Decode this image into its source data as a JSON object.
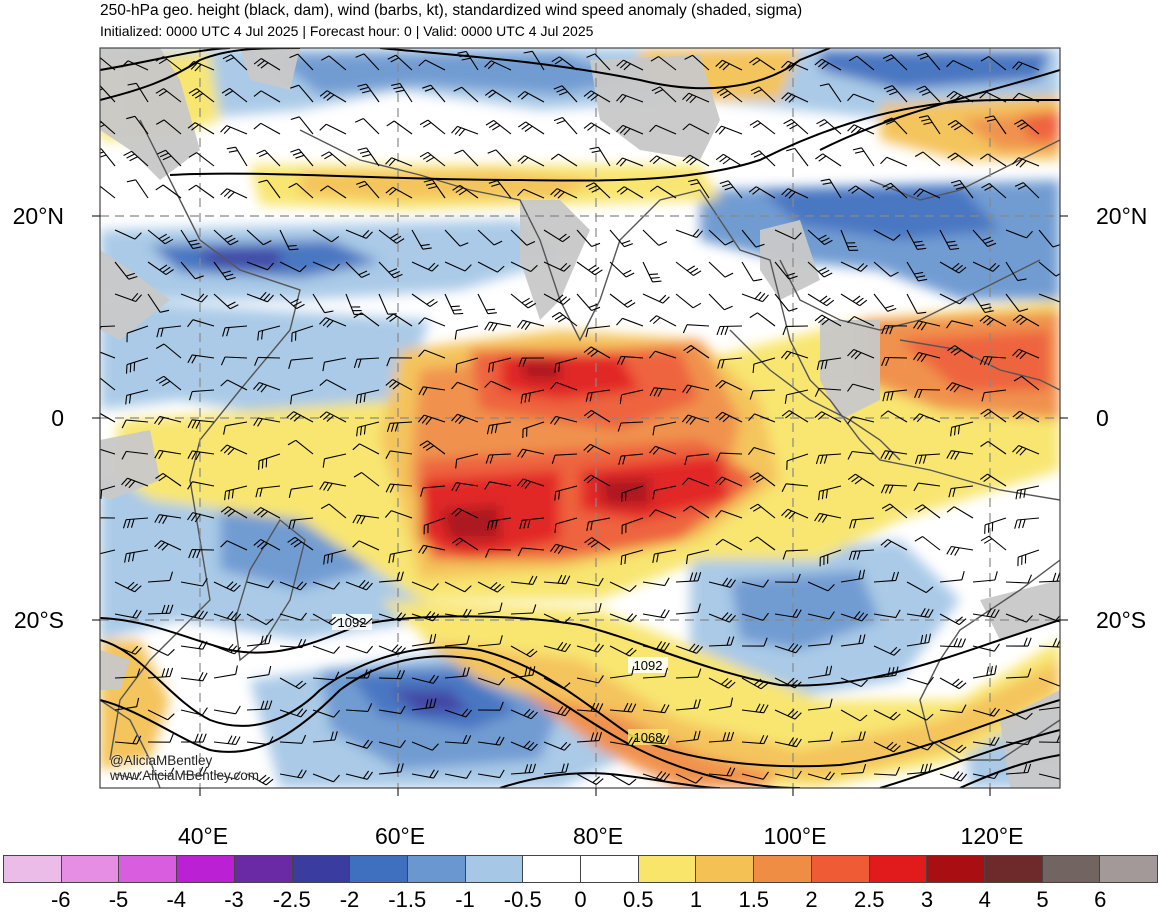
{
  "header": {
    "title": "250-hPa geo. height (black, dam), wind (barbs, kt), standardized wind speed anomaly (shaded, sigma)",
    "subtitle": "Initialized: 0000 UTC 4 Jul 2025 | Forecast hour: 0 | Valid: 0000 UTC 4 Jul 2025"
  },
  "map": {
    "region": "Indian Ocean and Maritime Continent",
    "lat_labels": {
      "n20": "20°N",
      "eq": "0",
      "s20": "20°S"
    },
    "lon_labels": {
      "e40": "40°E",
      "e60": "60°E",
      "e80": "80°E",
      "e100": "100°E",
      "e120": "120°E"
    },
    "contour_labels": {
      "c1": "1092",
      "c2": "1092",
      "c3": "1068"
    },
    "credit": {
      "line1": "@AliciaMBentley",
      "line2": "www.AliciaMBentley.com"
    }
  },
  "colorbar": {
    "colors": [
      "#ecbce9",
      "#e58ee4",
      "#d95ddf",
      "#bb20d4",
      "#6a2aa5",
      "#3a3ca0",
      "#3f6fbf",
      "#6b97d0",
      "#a6c8e6",
      "#ffffff",
      "#ffffff",
      "#f8e56a",
      "#f4c155",
      "#f08d45",
      "#ee5b35",
      "#e11b1b",
      "#a80e12",
      "#6e2a2a",
      "#726461",
      "#a39998"
    ],
    "labels": [
      "-6",
      "-5",
      "-4",
      "-3",
      "-2.5",
      "-2",
      "-1.5",
      "-1",
      "-0.5",
      "0",
      "0.5",
      "1",
      "1.5",
      "2",
      "2.5",
      "3",
      "4",
      "5",
      "6"
    ]
  }
}
